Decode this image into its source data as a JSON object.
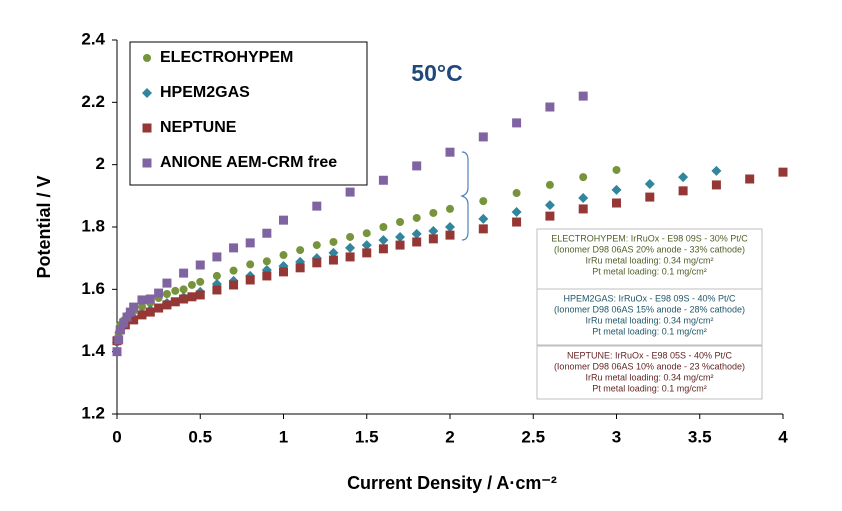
{
  "chart_data": {
    "type": "scatter",
    "title": "50°C",
    "x_label": "Current Density / A·cm⁻²",
    "y_label": "Potential / V",
    "xlim": [
      0,
      4
    ],
    "xticks": [
      0,
      0.5,
      1,
      1.5,
      2,
      2.5,
      3,
      3.5,
      4
    ],
    "ylim": [
      1.2,
      2.4
    ],
    "yticks": [
      1.2,
      1.4,
      1.6,
      1.8,
      2,
      2.2,
      2.4
    ],
    "grid": false,
    "legend": "upper left",
    "series": [
      {
        "name": "ELECTROHYPEM",
        "color": "#77933c",
        "marker": "circle",
        "x": [
          0,
          0.01,
          0.02,
          0.04,
          0.06,
          0.1,
          0.15,
          0.2,
          0.25,
          0.3,
          0.35,
          0.4,
          0.45,
          0.5,
          0.6,
          0.7,
          0.8,
          0.9,
          1.0,
          1.1,
          1.2,
          1.3,
          1.4,
          1.5,
          1.6,
          1.7,
          1.8,
          1.9,
          2.0,
          2.2,
          2.4,
          2.6,
          2.8,
          3.0
        ],
        "values": [
          1.438,
          1.46,
          1.486,
          1.5,
          1.515,
          1.53,
          1.544,
          1.556,
          1.572,
          1.585,
          1.595,
          1.6,
          1.614,
          1.624,
          1.643,
          1.66,
          1.68,
          1.69,
          1.71,
          1.726,
          1.742,
          1.752,
          1.768,
          1.78,
          1.8,
          1.816,
          1.829,
          1.845,
          1.858,
          1.883,
          1.909,
          1.935,
          1.96,
          1.983
        ]
      },
      {
        "name": "HPEM2GAS",
        "color": "#31859c",
        "marker": "diamond",
        "x": [
          0,
          0.02,
          0.05,
          0.1,
          0.15,
          0.2,
          0.3,
          0.4,
          0.5,
          0.6,
          0.7,
          0.8,
          0.9,
          1.0,
          1.1,
          1.2,
          1.3,
          1.4,
          1.5,
          1.6,
          1.7,
          1.8,
          1.9,
          2.0,
          2.2,
          2.4,
          2.6,
          2.8,
          3.0,
          3.2,
          3.4,
          3.6
        ],
        "values": [
          1.43,
          1.47,
          1.492,
          1.508,
          1.521,
          1.534,
          1.556,
          1.575,
          1.592,
          1.617,
          1.627,
          1.643,
          1.662,
          1.675,
          1.688,
          1.7,
          1.717,
          1.733,
          1.742,
          1.758,
          1.768,
          1.778,
          1.787,
          1.8,
          1.826,
          1.848,
          1.87,
          1.893,
          1.919,
          1.938,
          1.96,
          1.98
        ]
      },
      {
        "name": "NEPTUNE",
        "color": "#953735",
        "marker": "square",
        "x": [
          0,
          0.02,
          0.05,
          0.1,
          0.15,
          0.2,
          0.25,
          0.3,
          0.35,
          0.4,
          0.45,
          0.5,
          0.6,
          0.7,
          0.8,
          0.9,
          1.0,
          1.1,
          1.2,
          1.3,
          1.4,
          1.5,
          1.6,
          1.7,
          1.8,
          1.9,
          2.0,
          2.2,
          2.4,
          2.6,
          2.8,
          3.0,
          3.2,
          3.4,
          3.6,
          3.8,
          4.0
        ],
        "values": [
          1.435,
          1.47,
          1.486,
          1.502,
          1.518,
          1.527,
          1.54,
          1.55,
          1.56,
          1.569,
          1.576,
          1.582,
          1.598,
          1.614,
          1.63,
          1.643,
          1.656,
          1.669,
          1.685,
          1.694,
          1.704,
          1.717,
          1.73,
          1.742,
          1.752,
          1.762,
          1.774,
          1.794,
          1.816,
          1.835,
          1.858,
          1.877,
          1.896,
          1.916,
          1.935,
          1.954,
          1.976
        ]
      },
      {
        "name": "ANIONE AEM-CRM free",
        "color": "#8064a2",
        "marker": "square",
        "x": [
          0,
          0.01,
          0.02,
          0.04,
          0.06,
          0.08,
          0.1,
          0.15,
          0.2,
          0.25,
          0.3,
          0.4,
          0.5,
          0.6,
          0.7,
          0.8,
          0.9,
          1.0,
          1.2,
          1.4,
          1.6,
          1.8,
          2.0,
          2.2,
          2.4,
          2.6,
          2.8
        ],
        "values": [
          1.4,
          1.438,
          1.47,
          1.492,
          1.511,
          1.527,
          1.543,
          1.566,
          1.569,
          1.588,
          1.62,
          1.652,
          1.678,
          1.704,
          1.733,
          1.749,
          1.78,
          1.822,
          1.867,
          1.912,
          1.95,
          1.996,
          2.04,
          2.089,
          2.134,
          2.185,
          2.22
        ]
      }
    ],
    "notes": [
      {
        "color": "#4f6228",
        "lines": [
          "ELECTROHYPEM: IrRuOx - E98 09S - 30% Pt/C",
          "(Ionomer D98 06AS 20% anode - 33% cathode)",
          "IrRu metal loading: 0.34 mg/cm²",
          "Pt metal loading: 0.1 mg/cm²"
        ]
      },
      {
        "color": "#215968",
        "lines": [
          "HPEM2GAS: IrRuOx - E98 09S - 40% Pt/C",
          "(Ionomer D98 06AS 15% anode - 28% cathode)",
          "IrRu metal loading: 0.34 mg/cm²",
          "Pt metal loading: 0.1 mg/cm²"
        ]
      },
      {
        "color": "#632523",
        "lines": [
          "NEPTUNE: IrRuOx - E98 05S - 40% Pt/C",
          "(Ionomer D98 06AS 10% anode - 23 %cathode)",
          "IrRu metal loading: 0.34 mg/cm²",
          "Pt metal loading: 0.1 mg/cm²"
        ]
      }
    ]
  }
}
